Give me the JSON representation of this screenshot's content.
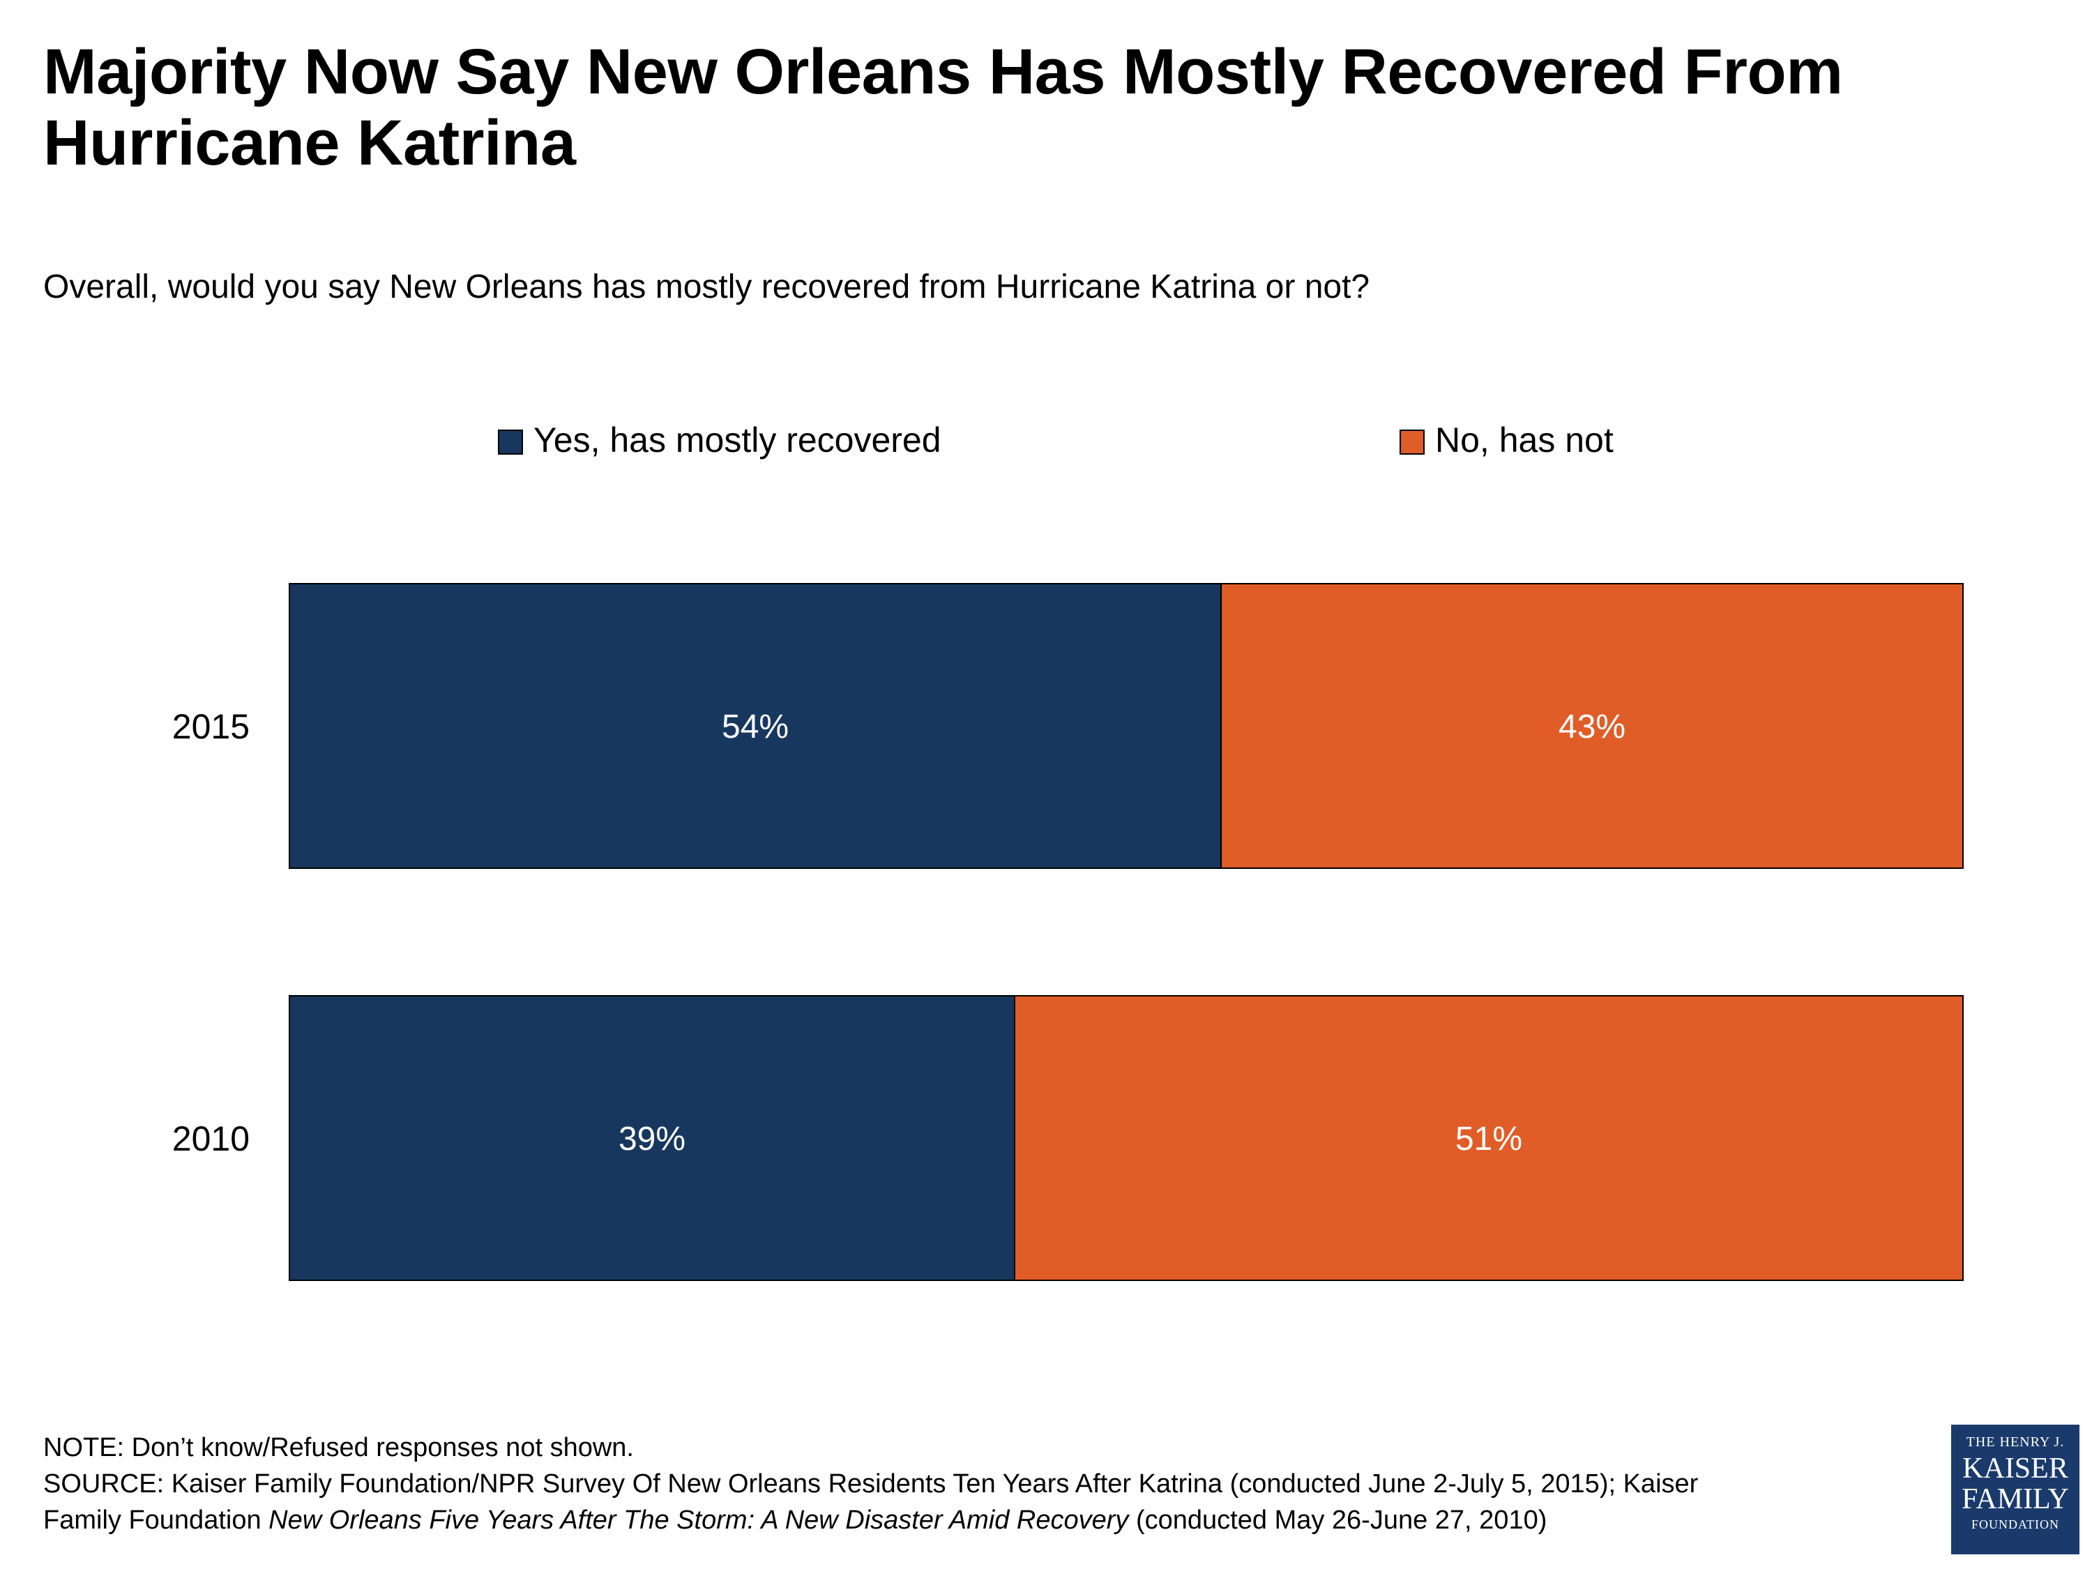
{
  "title": "Majority Now Say New Orleans Has Mostly Recovered From Hurricane Katrina",
  "subtitle": "Overall, would you say New Orleans has mostly recovered from Hurricane Katrina or not?",
  "chart_data": {
    "type": "bar",
    "orientation": "horizontal",
    "stacked": true,
    "categories": [
      "2015",
      "2010"
    ],
    "series": [
      {
        "name": "Yes, has mostly recovered",
        "color": "#17375e",
        "values": [
          54,
          39
        ],
        "labels": [
          "54%",
          "39%"
        ]
      },
      {
        "name": "No, has not",
        "color": "#e05d28",
        "values": [
          43,
          51
        ],
        "labels": [
          "43%",
          "51%"
        ]
      }
    ],
    "legend_position": "top"
  },
  "notes": {
    "note": "NOTE: Don’t know/Refused responses not shown.",
    "source_1": "SOURCE: Kaiser Family Foundation/NPR Survey Of New Orleans Residents Ten Years After Katrina (conducted June 2-July 5, 2015); Kaiser",
    "source_2_prefix": "Family Foundation ",
    "source_2_italic": "New Orleans Five Years After The Storm: A New Disaster Amid Recovery",
    "source_2_suffix": " (conducted May 26-June 27, 2010)"
  },
  "logo": {
    "line1": "THE HENRY J.",
    "line2": "KAISER",
    "line3": "FAMILY",
    "line4": "FOUNDATION"
  }
}
